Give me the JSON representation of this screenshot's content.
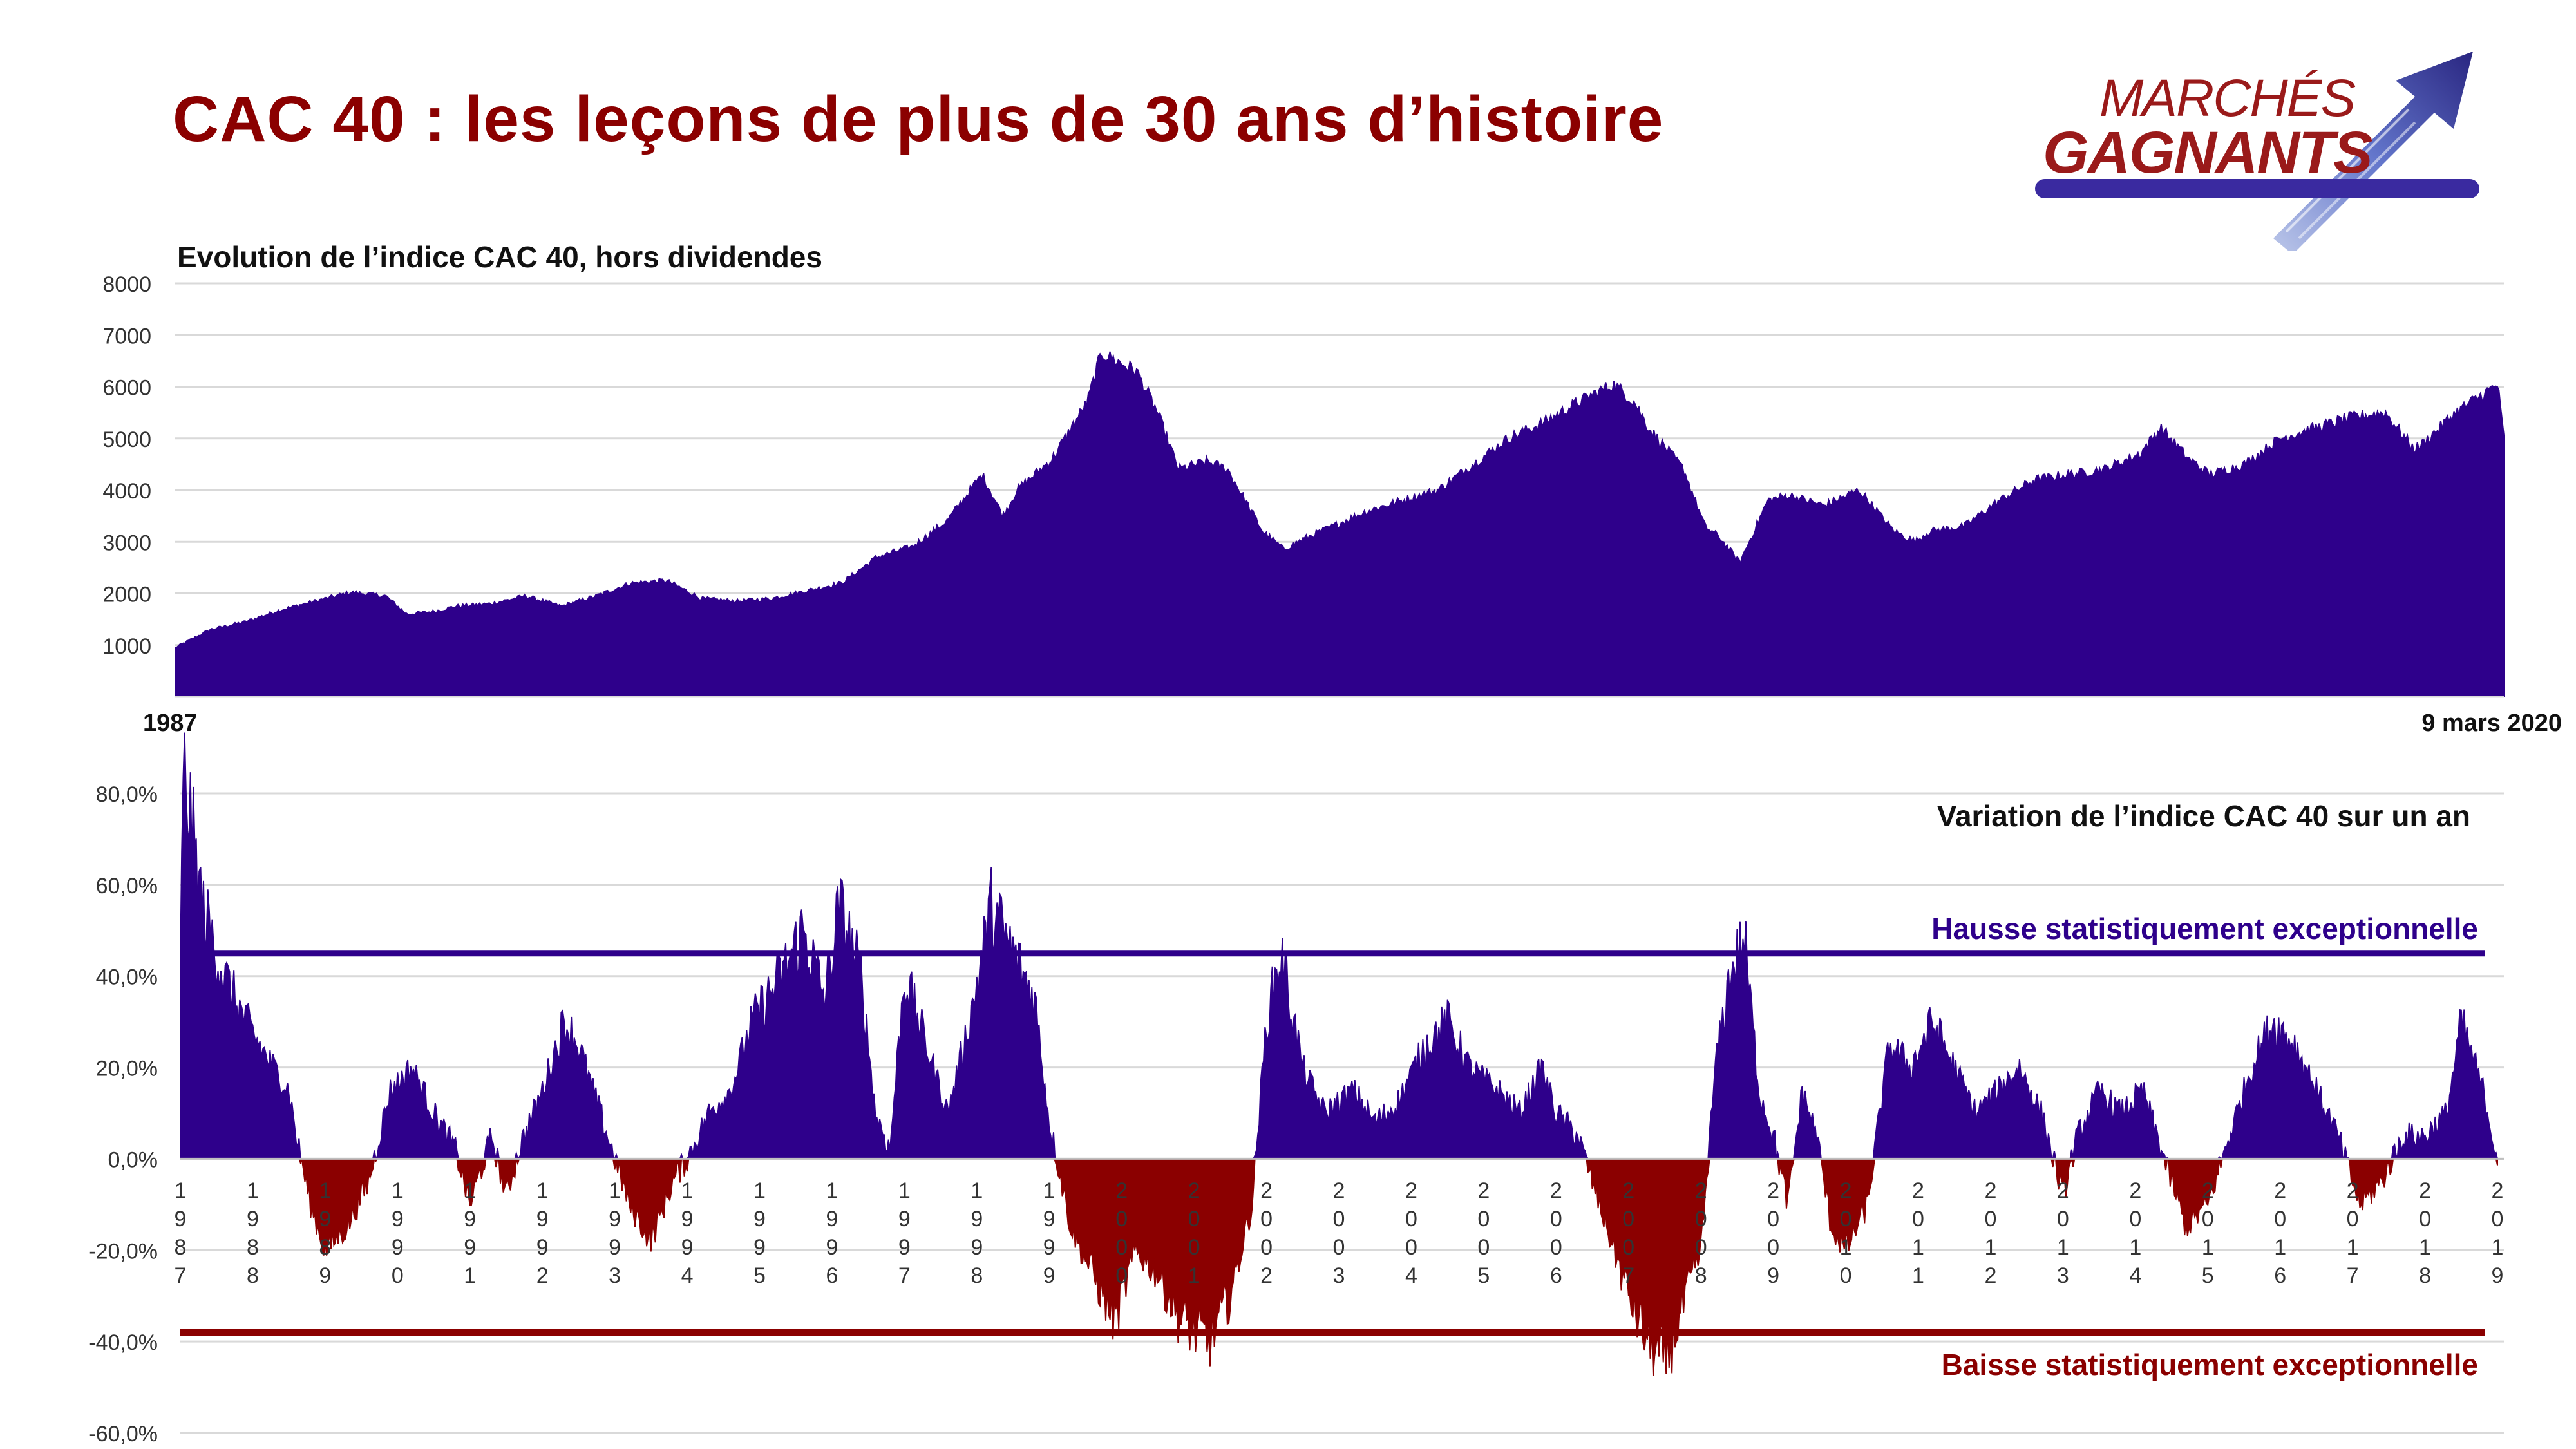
{
  "header": {
    "title": "CAC 40 : les leçons de plus de 30 ans d’histoire",
    "logo_line1": "MARCHÉS",
    "logo_line2": "GAGNANTS"
  },
  "colors": {
    "title": "#8b0000",
    "area": "#2e008b",
    "negative": "#8b0000",
    "grid": "#d9d9d9",
    "logo_blue": "#3a2aa0"
  },
  "chart_data": [
    {
      "type": "area",
      "title": "Evolution de l’indice CAC 40, hors dividendes",
      "ylim": [
        0,
        8000
      ],
      "yticks": [
        1000,
        2000,
        3000,
        4000,
        5000,
        6000,
        7000,
        8000
      ],
      "ytick_labels": [
        "1000",
        "2000",
        "3000",
        "4000",
        "5000",
        "6000",
        "7000",
        "8000"
      ],
      "x_start_label": "1987",
      "x_end_label": "9 mars 2020",
      "grid": true,
      "series": [
        {
          "x": [
            1987.0,
            1987.5,
            1988.0,
            1988.5,
            1989.0,
            1989.5,
            1990.0,
            1990.3,
            1990.7,
            1991.0,
            1991.5,
            1992.0,
            1992.5,
            1993.0,
            1993.5,
            1994.0,
            1994.5,
            1995.0,
            1995.5,
            1996.0,
            1996.5,
            1997.0,
            1997.5,
            1998.0,
            1998.5,
            1998.8,
            1999.0,
            1999.5,
            2000.0,
            2000.2,
            2000.7,
            2001.0,
            2001.3,
            2001.7,
            2002.0,
            2002.5,
            2002.8,
            2003.0,
            2003.5,
            2004.0,
            2004.5,
            2005.0,
            2005.5,
            2006.0,
            2006.5,
            2007.0,
            2007.5,
            2007.8,
            2008.0,
            2008.5,
            2008.8,
            2009.0,
            2009.3,
            2009.7,
            2010.0,
            2010.5,
            2011.0,
            2011.5,
            2011.8,
            2012.0,
            2012.5,
            2013.0,
            2013.5,
            2014.0,
            2014.5,
            2015.0,
            2015.3,
            2015.7,
            2016.0,
            2016.5,
            2017.0,
            2017.5,
            2018.0,
            2018.5,
            2018.9,
            2019.0,
            2019.5,
            2020.0,
            2020.1,
            2020.19
          ],
          "values": [
            950,
            1300,
            1450,
            1680,
            1850,
            2020,
            1950,
            1600,
            1650,
            1750,
            1800,
            1950,
            1750,
            1950,
            2200,
            2250,
            1900,
            1850,
            1900,
            2050,
            2200,
            2700,
            2900,
            3400,
            4300,
            3500,
            4000,
            4600,
            5700,
            6650,
            6300,
            5500,
            4400,
            4550,
            4400,
            3200,
            2850,
            3000,
            3300,
            3600,
            3800,
            4000,
            4500,
            5000,
            5300,
            5700,
            6050,
            5700,
            5200,
            4400,
            3300,
            3100,
            2600,
            3800,
            3900,
            3700,
            4000,
            3200,
            3000,
            3200,
            3300,
            3800,
            4200,
            4300,
            4400,
            4700,
            5200,
            4600,
            4300,
            4500,
            5000,
            5200,
            5400,
            5500,
            4800,
            4850,
            5500,
            5950,
            6050,
            5000
          ]
        }
      ]
    },
    {
      "type": "area",
      "title": "Variation de l’indice CAC 40 sur un an",
      "ylim": [
        -60,
        80
      ],
      "yticks": [
        -60,
        -40,
        -20,
        0,
        20,
        40,
        60,
        80
      ],
      "ytick_labels": [
        "-60,0%",
        "-40,0%",
        "-20,0%",
        "0,0%",
        "20,0%",
        "40,0%",
        "60,0%",
        "80,0%"
      ],
      "x_categories": [
        "1987",
        "1988",
        "1989",
        "1990",
        "1991",
        "1992",
        "1993",
        "1994",
        "1995",
        "1996",
        "1997",
        "1998",
        "1999",
        "2000",
        "2001",
        "2002",
        "2003",
        "2004",
        "2005",
        "2006",
        "2007",
        "2008",
        "2009",
        "2010",
        "2011",
        "2012",
        "2013",
        "2014",
        "2015",
        "2016",
        "2017",
        "2018",
        "2019"
      ],
      "reference_lines": [
        {
          "value": 45,
          "label": "Hausse statistiquement exceptionnelle"
        },
        {
          "value": -38,
          "label": "Baisse statistiquement exceptionnelle"
        }
      ],
      "grid": true,
      "series": [
        {
          "x": [
            1987.0,
            1987.05,
            1987.3,
            1987.6,
            1987.9,
            1988.2,
            1988.5,
            1988.6,
            1988.8,
            1989.0,
            1989.3,
            1989.6,
            1989.9,
            1990.2,
            1990.5,
            1990.8,
            1991.0,
            1991.3,
            1991.5,
            1991.7,
            1992.0,
            1992.3,
            1992.5,
            1992.7,
            1992.9,
            1993.2,
            1993.5,
            1993.8,
            1994.0,
            1994.3,
            1994.6,
            1994.9,
            1995.3,
            1995.6,
            1995.9,
            1996.1,
            1996.4,
            1996.6,
            1996.8,
            1997.0,
            1997.3,
            1997.6,
            1997.9,
            1998.2,
            1998.5,
            1998.8,
            1999.0,
            1999.3,
            1999.6,
            1999.9,
            2000.2,
            2000.5,
            2000.8,
            2001.2,
            2001.5,
            2001.8,
            2002.0,
            2002.2,
            2002.5,
            2002.8,
            2003.2,
            2003.5,
            2003.8,
            2004.2,
            2004.5,
            2004.8,
            2005.2,
            2005.5,
            2005.8,
            2006.0,
            2006.3,
            2006.6,
            2006.9,
            2007.2,
            2007.5,
            2007.8,
            2008.0,
            2008.2,
            2008.4,
            2008.6,
            2008.8,
            2009.0,
            2009.2,
            2009.4,
            2009.6,
            2009.8,
            2010.0,
            2010.3,
            2010.6,
            2010.9,
            2011.2,
            2011.5,
            2011.8,
            2012.1,
            2012.4,
            2012.7,
            2013.0,
            2013.2,
            2013.5,
            2013.8,
            2014.1,
            2014.4,
            2014.7,
            2015.0,
            2015.3,
            2015.6,
            2015.9,
            2016.2,
            2016.5,
            2016.8,
            2017.1,
            2017.4,
            2017.7,
            2018.0,
            2018.3,
            2018.5,
            2018.8,
            2019.0
          ],
          "values": [
            45,
            85,
            55,
            40,
            30,
            22,
            15,
            5,
            -10,
            -20,
            -15,
            -5,
            15,
            20,
            10,
            2,
            -10,
            5,
            -8,
            3,
            15,
            30,
            25,
            15,
            5,
            -10,
            -18,
            -5,
            0,
            10,
            15,
            30,
            40,
            50,
            35,
            55,
            40,
            10,
            2,
            40,
            25,
            10,
            30,
            55,
            45,
            35,
            8,
            -15,
            -25,
            -35,
            -20,
            -25,
            -35,
            -40,
            -30,
            -10,
            30,
            45,
            20,
            10,
            15,
            8,
            12,
            25,
            30,
            20,
            15,
            10,
            20,
            10,
            5,
            -10,
            -25,
            -38,
            -45,
            -30,
            -20,
            20,
            40,
            48,
            15,
            5,
            -10,
            15,
            5,
            -15,
            -20,
            -10,
            25,
            20,
            30,
            20,
            10,
            15,
            20,
            10,
            -8,
            5,
            15,
            10,
            15,
            0,
            -15,
            -10,
            5,
            20,
            30,
            25,
            15,
            5,
            -10,
            -5,
            5,
            5,
            10,
            30,
            15,
            0
          ]
        }
      ]
    }
  ]
}
